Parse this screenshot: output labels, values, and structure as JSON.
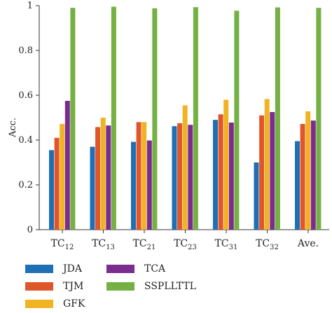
{
  "chart_data": {
    "type": "bar",
    "ylabel": "Acc.",
    "ylim": [
      0,
      1
    ],
    "yticks": [
      0,
      0.2,
      0.4,
      0.6,
      0.8,
      1
    ],
    "ytick_labels": [
      "0",
      "0.2",
      "0.4",
      "0.6",
      "0.8",
      "1"
    ],
    "categories": [
      {
        "base": "TC",
        "sub": "12"
      },
      {
        "base": "TC",
        "sub": "13"
      },
      {
        "base": "TC",
        "sub": "21"
      },
      {
        "base": "TC",
        "sub": "23"
      },
      {
        "base": "TC",
        "sub": "31"
      },
      {
        "base": "TC",
        "sub": "32"
      },
      {
        "base": "Ave.",
        "sub": ""
      }
    ],
    "series": [
      {
        "name": "JDA",
        "color": "#1f6fb5",
        "values": [
          0.355,
          0.37,
          0.392,
          0.462,
          0.49,
          0.3,
          0.395
        ]
      },
      {
        "name": "TJM",
        "color": "#e0562b",
        "values": [
          0.41,
          0.458,
          0.48,
          0.475,
          0.515,
          0.51,
          0.472
        ]
      },
      {
        "name": "GFK",
        "color": "#f0b323",
        "values": [
          0.472,
          0.5,
          0.48,
          0.555,
          0.58,
          0.583,
          0.528
        ]
      },
      {
        "name": "TCA",
        "color": "#7b2d8e",
        "values": [
          0.575,
          0.465,
          0.398,
          0.468,
          0.478,
          0.525,
          0.487
        ]
      },
      {
        "name": "SSPLLTTL",
        "color": "#74b043",
        "values": [
          0.99,
          0.995,
          0.988,
          0.993,
          0.977,
          0.992,
          0.99
        ]
      }
    ],
    "grid": false,
    "legend_position": "bottom-left"
  }
}
